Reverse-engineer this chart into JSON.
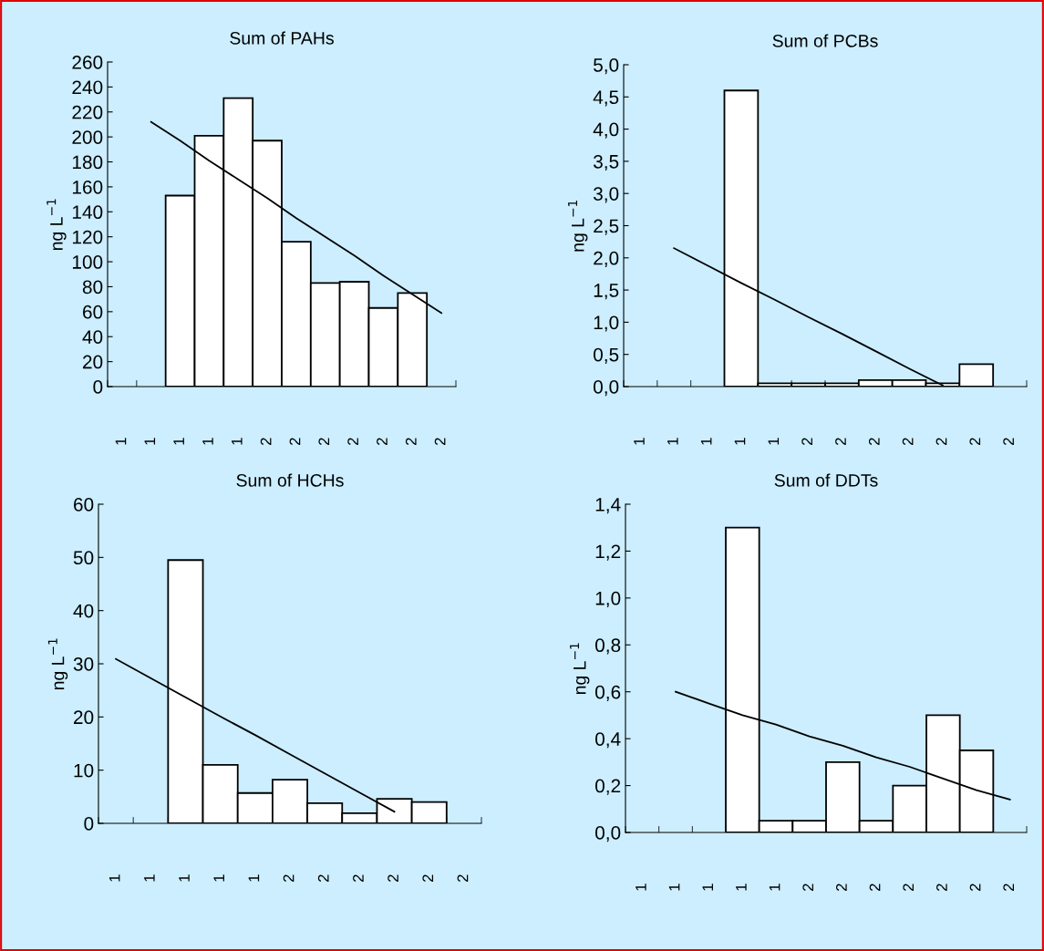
{
  "chart_data": [
    {
      "type": "bar",
      "title": "Sum of PAHs",
      "ylabel": "ng L$^{−1}$",
      "categories": [
        "1",
        "1",
        "1",
        "1",
        "1",
        "2",
        "2",
        "2",
        "2",
        "2",
        "2",
        "2"
      ],
      "ylim": [
        0,
        260
      ],
      "yticks": [
        0,
        20,
        40,
        60,
        80,
        100,
        120,
        140,
        160,
        180,
        200,
        220,
        240,
        260
      ],
      "series": [
        {
          "color": "#ffffff",
          "values": [
            null,
            null,
            153,
            201,
            231,
            197,
            116,
            83,
            84,
            63,
            75,
            null
          ]
        },
        {
          "type": "line",
          "color": "#000000",
          "values": [
            null,
            212,
            197,
            181,
            166,
            151,
            135,
            120,
            105,
            89,
            74,
            59
          ]
        }
      ]
    },
    {
      "type": "bar",
      "title": "Sum of PCBs",
      "ylabel": "ng L$^{−1}$",
      "categories": [
        "1",
        "1",
        "1",
        "1",
        "1",
        "2",
        "2",
        "2",
        "2",
        "2",
        "2",
        "2"
      ],
      "ylim": [
        0,
        5
      ],
      "yticks": [
        {
          "value": 0,
          "label": "0,0"
        },
        {
          "value": 0.5,
          "label": "0,5"
        },
        {
          "value": 1,
          "label": "1,0"
        },
        {
          "value": 1.5,
          "label": "1,5"
        },
        {
          "value": 2,
          "label": "2,0"
        },
        {
          "value": 2.5,
          "label": "2,5"
        },
        {
          "value": 3,
          "label": "3,0"
        },
        {
          "value": 3.5,
          "label": "3,5"
        },
        {
          "value": 4,
          "label": "4,0"
        },
        {
          "value": 4.5,
          "label": "4,5"
        },
        {
          "value": 5,
          "label": "5,0"
        }
      ],
      "series": [
        {
          "color": "#ffffff",
          "values": [
            null,
            null,
            null,
            4.6,
            0.05,
            0.05,
            0.05,
            0.1,
            0.1,
            0.05,
            0.35,
            null
          ]
        },
        {
          "type": "line",
          "color": "#000000",
          "values": [
            null,
            2.15,
            1.88,
            1.61,
            1.35,
            1.08,
            0.82,
            0.55,
            0.28,
            0.02,
            null,
            null
          ]
        }
      ]
    },
    {
      "type": "bar",
      "title": "Sum of HCHs",
      "ylabel": "ng L$^{−1}$",
      "categories": [
        "1",
        "1",
        "1",
        "1",
        "1",
        "2",
        "2",
        "2",
        "2",
        "2",
        "2"
      ],
      "ylim": [
        0,
        60
      ],
      "yticks": [
        0,
        10,
        20,
        30,
        40,
        50,
        60
      ],
      "series": [
        {
          "color": "#ffffff",
          "values": [
            null,
            null,
            49.5,
            11,
            5.7,
            8.2,
            3.8,
            1.9,
            4.6,
            4.0,
            null
          ]
        },
        {
          "type": "line",
          "color": "#000000",
          "values": [
            30.9,
            27.3,
            23.7,
            20.1,
            16.6,
            13.0,
            9.4,
            5.8,
            2.2,
            null,
            null
          ]
        }
      ]
    },
    {
      "type": "bar",
      "title": "Sum of DDTs",
      "ylabel": "ng L$^{−1}$",
      "categories": [
        "1",
        "1",
        "1",
        "1",
        "1",
        "2",
        "2",
        "2",
        "2",
        "2",
        "2",
        "2"
      ],
      "ylim": [
        0,
        1.4
      ],
      "yticks": [
        {
          "value": 0,
          "label": "0,0"
        },
        {
          "value": 0.2,
          "label": "0,2"
        },
        {
          "value": 0.4,
          "label": "0,4"
        },
        {
          "value": 0.6,
          "label": "0,6"
        },
        {
          "value": 0.8,
          "label": "0,8"
        },
        {
          "value": 1,
          "label": "1,0"
        },
        {
          "value": 1.2,
          "label": "1,2"
        },
        {
          "value": 1.4,
          "label": "1,4"
        }
      ],
      "series": [
        {
          "color": "#ffffff",
          "values": [
            null,
            null,
            null,
            1.3,
            0.05,
            0.05,
            0.3,
            0.05,
            0.2,
            0.5,
            0.35,
            null
          ]
        },
        {
          "type": "line",
          "color": "#000000",
          "values": [
            null,
            0.6,
            0.55,
            0.5,
            0.46,
            0.41,
            0.37,
            0.32,
            0.28,
            0.23,
            0.18,
            0.14
          ]
        }
      ]
    }
  ]
}
